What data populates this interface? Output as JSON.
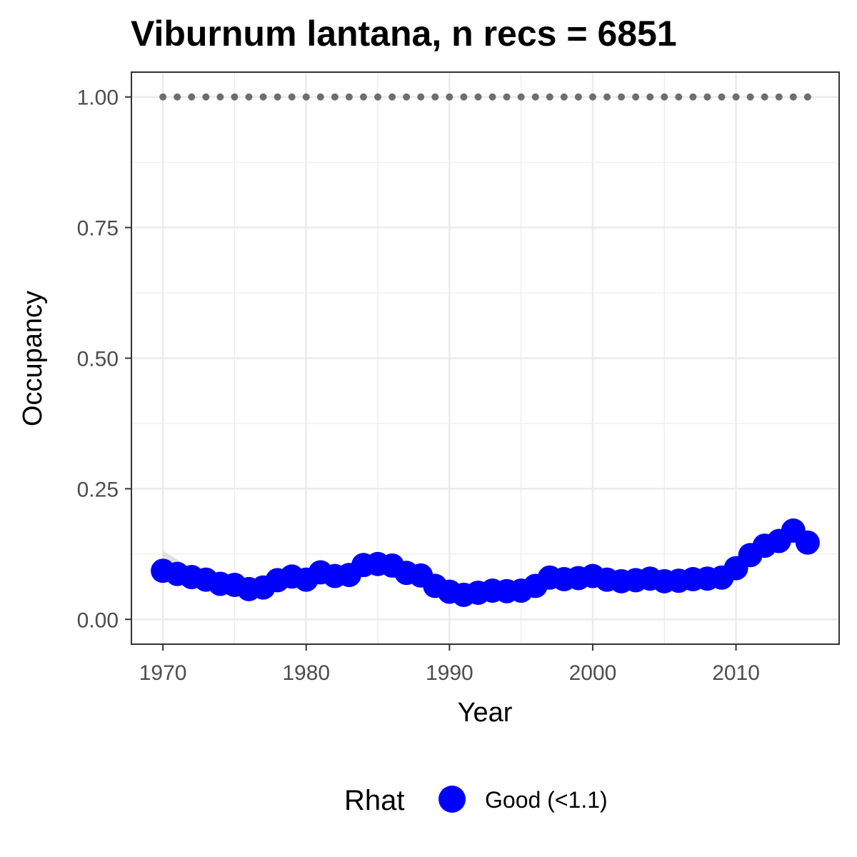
{
  "chart_data": {
    "type": "line",
    "title": "Viburnum lantana, n recs = 6851",
    "xlabel": "Year",
    "ylabel": "Occupancy",
    "xlim": [
      1967.8,
      2017.2
    ],
    "ylim": [
      -0.0475,
      1.0475
    ],
    "x_ticks": [
      1970,
      1980,
      1990,
      2000,
      2010
    ],
    "y_ticks": [
      0.0,
      0.25,
      0.5,
      0.75,
      1.0
    ],
    "y_tick_labels": [
      "0.00",
      "0.25",
      "0.50",
      "0.75",
      "1.00"
    ],
    "grid": true,
    "legend": {
      "title": "Rhat",
      "position": "bottom",
      "entries": [
        "Good (<1.1)"
      ]
    },
    "colors": {
      "occupancy": "#0000ff",
      "reference": "#6e6e6e",
      "ribbon": "#d9d9d9",
      "grid": "#ebebeb",
      "panel_border": "#333333"
    },
    "series": [
      {
        "name": "Good (<1.1)",
        "x": [
          1970,
          1971,
          1972,
          1973,
          1974,
          1975,
          1976,
          1977,
          1978,
          1979,
          1980,
          1981,
          1982,
          1983,
          1984,
          1985,
          1986,
          1987,
          1988,
          1989,
          1990,
          1991,
          1992,
          1993,
          1994,
          1995,
          1996,
          1997,
          1998,
          1999,
          2000,
          2001,
          2002,
          2003,
          2004,
          2005,
          2006,
          2007,
          2008,
          2009,
          2010,
          2011,
          2012,
          2013,
          2014,
          2015
        ],
        "y": [
          0.093,
          0.087,
          0.081,
          0.076,
          0.068,
          0.066,
          0.058,
          0.061,
          0.075,
          0.082,
          0.076,
          0.09,
          0.083,
          0.085,
          0.104,
          0.106,
          0.103,
          0.089,
          0.084,
          0.064,
          0.053,
          0.047,
          0.051,
          0.055,
          0.054,
          0.055,
          0.064,
          0.08,
          0.077,
          0.079,
          0.083,
          0.076,
          0.073,
          0.075,
          0.078,
          0.073,
          0.074,
          0.077,
          0.078,
          0.08,
          0.098,
          0.123,
          0.141,
          0.15,
          0.17,
          0.147
        ],
        "ribbon_lower": [
          0.085,
          0.082,
          0.078,
          0.074,
          0.066,
          0.064,
          0.056,
          0.059,
          0.073,
          0.08,
          0.074,
          0.088,
          0.081,
          0.083,
          0.102,
          0.104,
          0.101,
          0.087,
          0.082,
          0.062,
          0.051,
          0.045,
          0.049,
          0.053,
          0.052,
          0.053,
          0.062,
          0.078,
          0.075,
          0.077,
          0.081,
          0.074,
          0.071,
          0.073,
          0.076,
          0.071,
          0.072,
          0.075,
          0.076,
          0.078,
          0.096,
          0.121,
          0.139,
          0.148,
          0.168,
          0.145
        ],
        "ribbon_upper": [
          0.131,
          0.115,
          0.096,
          0.084,
          0.072,
          0.069,
          0.061,
          0.064,
          0.078,
          0.085,
          0.079,
          0.093,
          0.086,
          0.088,
          0.107,
          0.109,
          0.106,
          0.092,
          0.087,
          0.067,
          0.056,
          0.05,
          0.054,
          0.058,
          0.057,
          0.058,
          0.067,
          0.083,
          0.08,
          0.082,
          0.086,
          0.079,
          0.076,
          0.078,
          0.081,
          0.076,
          0.077,
          0.08,
          0.081,
          0.083,
          0.101,
          0.126,
          0.144,
          0.153,
          0.173,
          0.15
        ]
      },
      {
        "name": "",
        "x": [
          1970,
          1971,
          1972,
          1973,
          1974,
          1975,
          1976,
          1977,
          1978,
          1979,
          1980,
          1981,
          1982,
          1983,
          1984,
          1985,
          1986,
          1987,
          1988,
          1989,
          1990,
          1991,
          1992,
          1993,
          1994,
          1995,
          1996,
          1997,
          1998,
          1999,
          2000,
          2001,
          2002,
          2003,
          2004,
          2005,
          2006,
          2007,
          2008,
          2009,
          2010,
          2011,
          2012,
          2013,
          2014,
          2015
        ],
        "y": [
          1,
          1,
          1,
          1,
          1,
          1,
          1,
          1,
          1,
          1,
          1,
          1,
          1,
          1,
          1,
          1,
          1,
          1,
          1,
          1,
          1,
          1,
          1,
          1,
          1,
          1,
          1,
          1,
          1,
          1,
          1,
          1,
          1,
          1,
          1,
          1,
          1,
          1,
          1,
          1,
          1,
          1,
          1,
          1,
          1,
          1
        ]
      }
    ]
  }
}
